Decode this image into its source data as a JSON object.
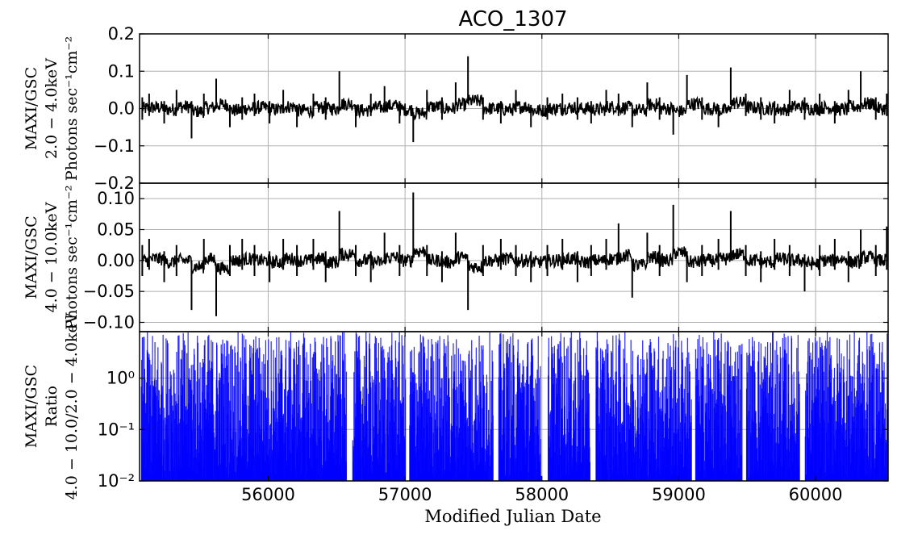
{
  "chart_data": {
    "type": "line",
    "title": "ACO_1307",
    "xlabel": "Modified Julian Date",
    "xlim": [
      55060,
      60530
    ],
    "xticks": [
      56000,
      57000,
      58000,
      59000,
      60000
    ],
    "xtick_labels": [
      "56000",
      "57000",
      "58000",
      "59000",
      "60000"
    ],
    "grid": true,
    "panels": [
      {
        "id": "soft",
        "ylabel_lines": [
          "MAXI/GSC",
          "2.0 − 4.0keV",
          "Photons sec⁻¹cm⁻²"
        ],
        "ylim": [
          -0.2,
          0.2
        ],
        "yticks": [
          0.2,
          0.1,
          0.0,
          -0.1,
          -0.2
        ],
        "ytick_labels": [
          "0.2",
          "0.1",
          "0.0",
          "−0.1",
          "−0.2"
        ],
        "color": "#000000",
        "series": {
          "x": [
            55080,
            55130,
            55240,
            55330,
            55440,
            55530,
            55620,
            55720,
            55810,
            55900,
            56010,
            56110,
            56210,
            56330,
            56420,
            56520,
            56640,
            56750,
            56850,
            56960,
            57060,
            57160,
            57270,
            57370,
            57460,
            57570,
            57700,
            57810,
            57920,
            58040,
            58150,
            58260,
            58360,
            58470,
            58560,
            58660,
            58770,
            58860,
            58960,
            59060,
            59170,
            59290,
            59380,
            59490,
            59600,
            59700,
            59810,
            59920,
            60030,
            60140,
            60240,
            60330,
            60440,
            60520
          ],
          "y": [
            0.0,
            0.01,
            -0.01,
            0.02,
            -0.03,
            0.01,
            0.04,
            -0.02,
            0.0,
            0.01,
            -0.01,
            0.02,
            -0.02,
            0.01,
            0.0,
            0.05,
            -0.02,
            0.01,
            0.03,
            -0.01,
            -0.05,
            0.02,
            0.0,
            0.04,
            0.08,
            0.0,
            -0.01,
            0.02,
            -0.02,
            0.0,
            0.01,
            0.0,
            -0.01,
            0.02,
            0.01,
            -0.02,
            0.04,
            0.0,
            -0.03,
            0.05,
            0.0,
            -0.02,
            0.06,
            0.01,
            0.0,
            -0.01,
            0.02,
            0.0,
            0.01,
            -0.01,
            0.02,
            0.05,
            0.0,
            0.01
          ],
          "err": [
            0.03,
            0.03,
            0.03,
            0.03,
            0.05,
            0.03,
            0.04,
            0.03,
            0.03,
            0.03,
            0.03,
            0.03,
            0.03,
            0.03,
            0.03,
            0.05,
            0.03,
            0.03,
            0.03,
            0.03,
            0.04,
            0.03,
            0.03,
            0.03,
            0.06,
            0.03,
            0.03,
            0.03,
            0.03,
            0.03,
            0.03,
            0.03,
            0.03,
            0.03,
            0.03,
            0.03,
            0.03,
            0.03,
            0.04,
            0.04,
            0.03,
            0.03,
            0.05,
            0.03,
            0.03,
            0.03,
            0.03,
            0.03,
            0.03,
            0.03,
            0.03,
            0.05,
            0.03,
            0.03
          ]
        }
      },
      {
        "id": "hard",
        "ylabel_lines": [
          "MAXI/GSC",
          "4.0 − 10.0keV",
          "Photons sec⁻¹cm⁻²"
        ],
        "ylim": [
          -0.115,
          0.125
        ],
        "yticks": [
          0.1,
          0.05,
          0.0,
          -0.05,
          -0.1
        ],
        "ytick_labels": [
          "0.10",
          "0.05",
          "0.00",
          "−0.05",
          "−0.10"
        ],
        "color": "#000000",
        "series": {
          "x": [
            55080,
            55130,
            55240,
            55330,
            55440,
            55530,
            55620,
            55720,
            55810,
            55900,
            56010,
            56110,
            56210,
            56330,
            56420,
            56520,
            56640,
            56750,
            56850,
            56960,
            57060,
            57160,
            57270,
            57370,
            57460,
            57570,
            57700,
            57810,
            57920,
            58040,
            58150,
            58260,
            58360,
            58470,
            58560,
            58660,
            58770,
            58860,
            58960,
            59060,
            59170,
            59290,
            59380,
            59490,
            59600,
            59700,
            59810,
            59920,
            60030,
            60140,
            60240,
            60330,
            60440,
            60520
          ],
          "y": [
            0.0,
            0.01,
            -0.01,
            0.0,
            -0.04,
            0.01,
            -0.05,
            0.0,
            0.01,
            0.0,
            -0.01,
            0.01,
            0.0,
            0.01,
            -0.01,
            0.04,
            0.0,
            -0.01,
            0.02,
            0.0,
            0.06,
            0.0,
            -0.01,
            0.02,
            -0.04,
            0.0,
            0.01,
            0.0,
            -0.01,
            0.0,
            0.01,
            -0.01,
            0.0,
            0.01,
            0.03,
            -0.03,
            0.02,
            0.0,
            0.05,
            -0.01,
            0.0,
            0.01,
            0.04,
            0.0,
            -0.01,
            0.01,
            0.0,
            -0.02,
            0.0,
            0.01,
            -0.01,
            0.02,
            0.0,
            0.02
          ],
          "err": [
            0.025,
            0.025,
            0.025,
            0.025,
            0.04,
            0.025,
            0.04,
            0.025,
            0.025,
            0.025,
            0.025,
            0.025,
            0.025,
            0.025,
            0.025,
            0.04,
            0.025,
            0.025,
            0.025,
            0.025,
            0.05,
            0.025,
            0.025,
            0.025,
            0.04,
            0.025,
            0.025,
            0.025,
            0.025,
            0.025,
            0.025,
            0.025,
            0.025,
            0.025,
            0.03,
            0.03,
            0.025,
            0.025,
            0.04,
            0.025,
            0.025,
            0.025,
            0.04,
            0.025,
            0.025,
            0.025,
            0.025,
            0.03,
            0.025,
            0.025,
            0.025,
            0.03,
            0.025,
            0.035
          ]
        }
      },
      {
        "id": "ratio",
        "type": "bar",
        "ylabel_lines": [
          "MAXI/GSC",
          "Ratio",
          "4.0 − 10.0/2.0 − 4.0keV"
        ],
        "yscale": "log",
        "ylim": [
          0.01,
          8
        ],
        "yticks": [
          1,
          0.1,
          0.01
        ],
        "ytick_labels": [
          "10⁰",
          "10⁻¹",
          "10⁻²"
        ],
        "color": "#0000ff",
        "gaps_x": [
          [
            56570,
            56610
          ],
          [
            57000,
            57030
          ],
          [
            57640,
            57680
          ],
          [
            57990,
            58040
          ],
          [
            58350,
            58390
          ],
          [
            59090,
            59120
          ],
          [
            59460,
            59490
          ],
          [
            59880,
            59920
          ]
        ]
      }
    ]
  }
}
